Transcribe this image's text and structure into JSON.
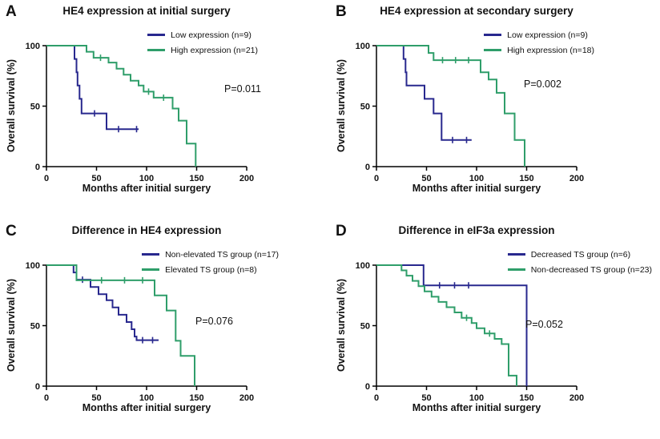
{
  "chart_data": [
    {
      "type": "line",
      "subtype": "kaplan-meier",
      "panel": "A",
      "title": "HE4 expression at initial surgery",
      "p_value": "P=0.011",
      "xlabel": "Months after initial surgery",
      "ylabel": "Overall survival (%)",
      "xlim": [
        0,
        200
      ],
      "ylim": [
        0,
        100
      ],
      "xticks": [
        0,
        50,
        100,
        150,
        200
      ],
      "yticks": [
        0,
        50,
        100
      ],
      "legend_position": "top-right",
      "series": [
        {
          "name": "Low expression (n=9)",
          "color": "#28288e",
          "steps": [
            [
              0,
              100
            ],
            [
              28,
              100
            ],
            [
              28,
              89
            ],
            [
              30,
              89
            ],
            [
              30,
              78
            ],
            [
              31,
              78
            ],
            [
              31,
              67
            ],
            [
              33,
              67
            ],
            [
              33,
              56
            ],
            [
              35,
              56
            ],
            [
              35,
              44
            ],
            [
              60,
              44
            ],
            [
              60,
              31
            ],
            [
              92,
              31
            ]
          ],
          "censors": [
            [
              48,
              44
            ],
            [
              72,
              31
            ],
            [
              90,
              31
            ]
          ]
        },
        {
          "name": "High expression (n=21)",
          "color": "#2f9e6a",
          "steps": [
            [
              0,
              100
            ],
            [
              40,
              100
            ],
            [
              40,
              95
            ],
            [
              47,
              95
            ],
            [
              47,
              90
            ],
            [
              62,
              90
            ],
            [
              62,
              86
            ],
            [
              70,
              86
            ],
            [
              70,
              81
            ],
            [
              77,
              81
            ],
            [
              77,
              76
            ],
            [
              84,
              76
            ],
            [
              84,
              71
            ],
            [
              92,
              71
            ],
            [
              92,
              67
            ],
            [
              97,
              67
            ],
            [
              97,
              62
            ],
            [
              107,
              62
            ],
            [
              107,
              57
            ],
            [
              126,
              57
            ],
            [
              126,
              48
            ],
            [
              132,
              48
            ],
            [
              132,
              38
            ],
            [
              140,
              38
            ],
            [
              140,
              19
            ],
            [
              149,
              19
            ],
            [
              149,
              0
            ]
          ],
          "censors": [
            [
              54,
              90
            ],
            [
              102,
              62
            ],
            [
              117,
              57
            ]
          ]
        }
      ]
    },
    {
      "type": "line",
      "subtype": "kaplan-meier",
      "panel": "B",
      "title": "HE4 expression at secondary surgery",
      "p_value": "P=0.002",
      "xlabel": "Months after initial surgery",
      "ylabel": "Overall survival (%)",
      "xlim": [
        0,
        200
      ],
      "ylim": [
        0,
        100
      ],
      "xticks": [
        0,
        50,
        100,
        150,
        200
      ],
      "yticks": [
        0,
        50,
        100
      ],
      "legend_position": "top-right",
      "series": [
        {
          "name": "Low expression (n=9)",
          "color": "#28288e",
          "steps": [
            [
              0,
              100
            ],
            [
              27,
              100
            ],
            [
              27,
              89
            ],
            [
              29,
              89
            ],
            [
              29,
              78
            ],
            [
              30,
              78
            ],
            [
              30,
              67
            ],
            [
              48,
              67
            ],
            [
              48,
              56
            ],
            [
              57,
              56
            ],
            [
              57,
              44
            ],
            [
              65,
              44
            ],
            [
              65,
              22
            ],
            [
              95,
              22
            ]
          ],
          "censors": [
            [
              76,
              22
            ],
            [
              90,
              22
            ]
          ]
        },
        {
          "name": "High expression (n=18)",
          "color": "#2f9e6a",
          "steps": [
            [
              0,
              100
            ],
            [
              52,
              100
            ],
            [
              52,
              94
            ],
            [
              57,
              94
            ],
            [
              57,
              88
            ],
            [
              104,
              88
            ],
            [
              104,
              78
            ],
            [
              112,
              78
            ],
            [
              112,
              72
            ],
            [
              120,
              72
            ],
            [
              120,
              61
            ],
            [
              128,
              61
            ],
            [
              128,
              44
            ],
            [
              138,
              44
            ],
            [
              138,
              22
            ],
            [
              148,
              22
            ],
            [
              148,
              0
            ]
          ],
          "censors": [
            [
              66,
              88
            ],
            [
              79,
              88
            ],
            [
              92,
              88
            ]
          ]
        }
      ]
    },
    {
      "type": "line",
      "subtype": "kaplan-meier",
      "panel": "C",
      "title": "Difference in HE4 expression",
      "p_value": "P=0.076",
      "xlabel": "Months after initial surgery",
      "ylabel": "Overall survival (%)",
      "xlim": [
        0,
        200
      ],
      "ylim": [
        0,
        100
      ],
      "xticks": [
        0,
        50,
        100,
        150,
        200
      ],
      "yticks": [
        0,
        50,
        100
      ],
      "legend_position": "top-right",
      "series": [
        {
          "name": "Non-elevated TS group (n=17)",
          "color": "#28288e",
          "steps": [
            [
              0,
              100
            ],
            [
              27,
              100
            ],
            [
              27,
              94
            ],
            [
              30,
              94
            ],
            [
              30,
              88
            ],
            [
              44,
              88
            ],
            [
              44,
              82
            ],
            [
              52,
              82
            ],
            [
              52,
              76
            ],
            [
              60,
              76
            ],
            [
              60,
              71
            ],
            [
              66,
              71
            ],
            [
              66,
              65
            ],
            [
              72,
              65
            ],
            [
              72,
              59
            ],
            [
              80,
              59
            ],
            [
              80,
              53
            ],
            [
              85,
              53
            ],
            [
              85,
              47
            ],
            [
              88,
              47
            ],
            [
              88,
              41
            ],
            [
              90,
              41
            ],
            [
              90,
              38
            ],
            [
              112,
              38
            ]
          ],
          "censors": [
            [
              36,
              88
            ],
            [
              96,
              38
            ],
            [
              106,
              38
            ]
          ]
        },
        {
          "name": "Elevated TS group (n=8)",
          "color": "#2f9e6a",
          "steps": [
            [
              0,
              100
            ],
            [
              30,
              100
            ],
            [
              30,
              87.5
            ],
            [
              108,
              87.5
            ],
            [
              108,
              75
            ],
            [
              120,
              75
            ],
            [
              120,
              62.5
            ],
            [
              129,
              62.5
            ],
            [
              129,
              37.5
            ],
            [
              134,
              37.5
            ],
            [
              134,
              25
            ],
            [
              148,
              25
            ],
            [
              148,
              0
            ]
          ],
          "censors": [
            [
              55,
              87.5
            ],
            [
              78,
              87.5
            ],
            [
              96,
              87.5
            ]
          ]
        }
      ]
    },
    {
      "type": "line",
      "subtype": "kaplan-meier",
      "panel": "D",
      "title": "Difference in eIF3a expression",
      "p_value": "P=0.052",
      "xlabel": "Months after initial surgery",
      "ylabel": "Overall survival (%)",
      "xlim": [
        0,
        200
      ],
      "ylim": [
        0,
        100
      ],
      "xticks": [
        0,
        50,
        100,
        150,
        200
      ],
      "yticks": [
        0,
        50,
        100
      ],
      "legend_position": "top-right",
      "series": [
        {
          "name": "Decreased TS group (n=6)",
          "color": "#28288e",
          "steps": [
            [
              0,
              100
            ],
            [
              47,
              100
            ],
            [
              47,
              83.3
            ],
            [
              150,
              83.3
            ],
            [
              150,
              0
            ]
          ],
          "censors": [
            [
              63,
              83.3
            ],
            [
              78,
              83.3
            ],
            [
              92,
              83.3
            ]
          ]
        },
        {
          "name": "Non-decreased TS group (n=23)",
          "color": "#2f9e6a",
          "steps": [
            [
              0,
              100
            ],
            [
              25,
              100
            ],
            [
              25,
              95.7
            ],
            [
              30,
              95.7
            ],
            [
              30,
              91.3
            ],
            [
              36,
              91.3
            ],
            [
              36,
              87
            ],
            [
              42,
              87
            ],
            [
              42,
              82.6
            ],
            [
              48,
              82.6
            ],
            [
              48,
              78.3
            ],
            [
              55,
              78.3
            ],
            [
              55,
              73.9
            ],
            [
              62,
              73.9
            ],
            [
              62,
              69.6
            ],
            [
              70,
              69.6
            ],
            [
              70,
              65.2
            ],
            [
              78,
              65.2
            ],
            [
              78,
              60.9
            ],
            [
              85,
              60.9
            ],
            [
              85,
              56.5
            ],
            [
              95,
              56.5
            ],
            [
              95,
              52.2
            ],
            [
              100,
              52.2
            ],
            [
              100,
              47.8
            ],
            [
              108,
              47.8
            ],
            [
              108,
              43.5
            ],
            [
              118,
              43.5
            ],
            [
              118,
              39.1
            ],
            [
              125,
              39.1
            ],
            [
              125,
              34.8
            ],
            [
              132,
              34.8
            ],
            [
              132,
              8.7
            ],
            [
              140,
              8.7
            ],
            [
              140,
              0
            ]
          ],
          "censors": [
            [
              90,
              56.5
            ],
            [
              113,
              43.5
            ]
          ]
        }
      ]
    }
  ]
}
